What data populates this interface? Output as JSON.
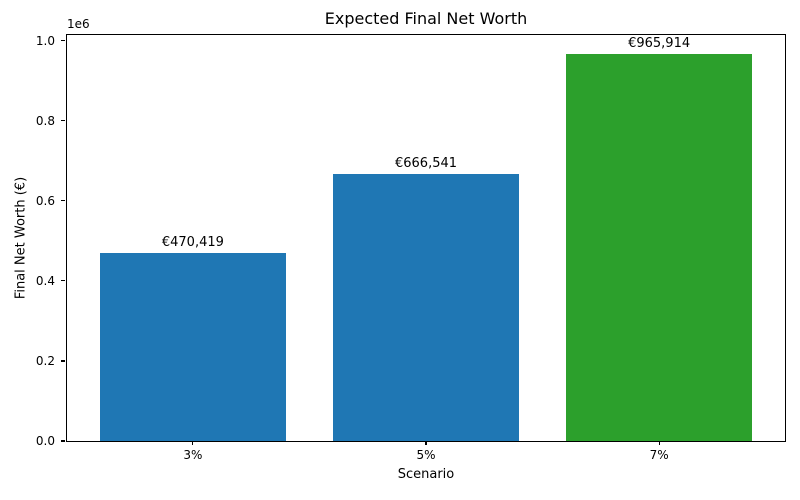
{
  "chart_data": {
    "type": "bar",
    "title": "Expected Final Net Worth",
    "xlabel": "Scenario",
    "ylabel": "Final Net Worth (€)",
    "categories": [
      "3%",
      "5%",
      "7%"
    ],
    "values": [
      470419,
      666541,
      965914
    ],
    "bar_labels": [
      "€470,419",
      "€666,541",
      "€965,914"
    ],
    "bar_colors": [
      "#1f77b4",
      "#1f77b4",
      "#2ca02c"
    ],
    "bar_width": 0.8,
    "xlim": [
      -0.54,
      2.54
    ],
    "ylim": [
      0,
      1014210
    ],
    "yticks": [
      0,
      200000,
      400000,
      600000,
      800000,
      1000000
    ],
    "ytick_labels": [
      "0.0",
      "0.2",
      "0.4",
      "0.6",
      "0.8",
      "1.0"
    ],
    "offset_text": "1e6",
    "grid": false,
    "legend": null,
    "background_color": "#ffffff",
    "text_color": "#000000"
  }
}
